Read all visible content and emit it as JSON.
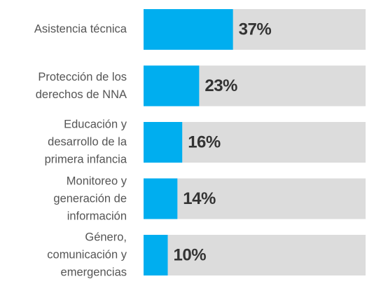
{
  "chart_data": {
    "type": "bar",
    "orientation": "horizontal",
    "categories": [
      "Asistencia técnica",
      "Protección de los\nderechos de NNA",
      "Educación y\ndesarrollo de la\nprimera infancia",
      "Monitoreo y\ngeneración de\ninformación",
      "Género,\ncomunicación y\nemergencias"
    ],
    "values": [
      37,
      23,
      16,
      14,
      10
    ],
    "value_labels": [
      "37%",
      "23%",
      "16%",
      "14%",
      "10%"
    ],
    "color": "#00aeef",
    "track_color": "#dcdcdc"
  }
}
